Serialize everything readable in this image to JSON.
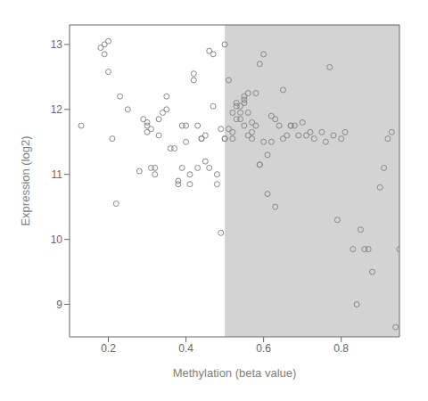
{
  "chart_data": {
    "type": "scatter",
    "x_label": "Methylation (beta value)",
    "y_label": "Expression (log2)",
    "x": [
      0.13,
      0.18,
      0.19,
      0.19,
      0.2,
      0.2,
      0.21,
      0.22,
      0.23,
      0.25,
      0.28,
      0.29,
      0.3,
      0.3,
      0.3,
      0.31,
      0.31,
      0.32,
      0.32,
      0.33,
      0.33,
      0.34,
      0.35,
      0.35,
      0.36,
      0.37,
      0.38,
      0.38,
      0.39,
      0.39,
      0.4,
      0.4,
      0.41,
      0.41,
      0.42,
      0.42,
      0.43,
      0.43,
      0.44,
      0.44,
      0.45,
      0.45,
      0.46,
      0.46,
      0.47,
      0.47,
      0.48,
      0.48,
      0.49,
      0.49,
      0.5,
      0.5,
      0.5,
      0.51,
      0.51,
      0.52,
      0.52,
      0.52,
      0.53,
      0.53,
      0.53,
      0.54,
      0.54,
      0.54,
      0.55,
      0.55,
      0.55,
      0.55,
      0.56,
      0.56,
      0.56,
      0.57,
      0.57,
      0.57,
      0.58,
      0.58,
      0.59,
      0.59,
      0.59,
      0.6,
      0.6,
      0.61,
      0.61,
      0.62,
      0.62,
      0.63,
      0.63,
      0.64,
      0.65,
      0.65,
      0.66,
      0.67,
      0.67,
      0.68,
      0.69,
      0.7,
      0.71,
      0.72,
      0.73,
      0.75,
      0.76,
      0.77,
      0.78,
      0.79,
      0.8,
      0.81,
      0.83,
      0.84,
      0.85,
      0.86,
      0.87,
      0.88,
      0.9,
      0.91,
      0.92,
      0.93,
      0.94,
      0.95
    ],
    "values": [
      11.75,
      12.95,
      13.0,
      12.85,
      13.05,
      12.58,
      11.55,
      10.55,
      12.2,
      12.0,
      11.05,
      11.85,
      11.65,
      11.75,
      11.8,
      11.7,
      11.1,
      11.1,
      11.0,
      11.85,
      11.6,
      11.95,
      12.0,
      12.2,
      11.4,
      11.4,
      10.85,
      10.9,
      11.75,
      11.1,
      11.75,
      11.5,
      11.0,
      10.85,
      12.55,
      12.45,
      11.75,
      11.1,
      11.55,
      11.55,
      11.6,
      11.2,
      12.9,
      11.1,
      12.05,
      12.85,
      11.0,
      10.85,
      11.7,
      10.1,
      11.55,
      11.55,
      13.0,
      12.45,
      11.7,
      11.65,
      11.55,
      11.95,
      12.1,
      12.05,
      11.85,
      11.85,
      11.95,
      12.05,
      12.15,
      12.1,
      12.2,
      11.75,
      11.95,
      11.6,
      12.25,
      11.55,
      11.65,
      11.8,
      12.25,
      11.75,
      11.15,
      11.15,
      12.7,
      11.5,
      12.85,
      10.7,
      11.3,
      11.9,
      11.5,
      10.5,
      11.85,
      11.75,
      12.3,
      11.55,
      11.6,
      11.75,
      11.75,
      11.75,
      11.6,
      11.8,
      11.6,
      11.65,
      11.55,
      11.65,
      11.5,
      12.65,
      11.6,
      10.3,
      11.55,
      11.65,
      9.85,
      9.0,
      10.15,
      9.85,
      9.85,
      9.5,
      10.8,
      11.1,
      11.55,
      11.65,
      8.65,
      9.85
    ],
    "color": "#888888",
    "marker": "circle",
    "xlim": [
      0.1,
      0.95
    ],
    "ylim": [
      8.5,
      13.3
    ],
    "xticks": [
      0.2,
      0.4,
      0.6,
      0.8
    ],
    "yticks": [
      9,
      10,
      11,
      12,
      13
    ],
    "shaded_region": {
      "x": [
        0.5,
        0.95
      ],
      "color": "#d3d3d3"
    },
    "grid": false
  }
}
